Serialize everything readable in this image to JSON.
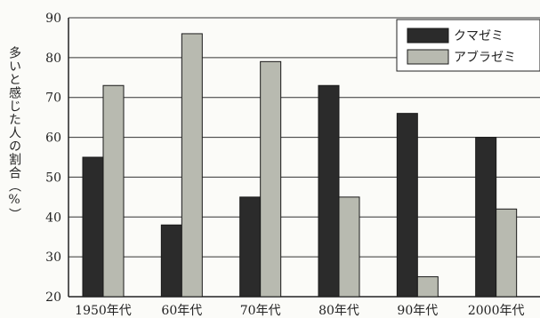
{
  "chart_data": {
    "type": "bar",
    "ylabel": "多いと感じた人の割合（%）",
    "xlabel": "",
    "categories": [
      "1950年代",
      "60年代",
      "70年代",
      "80年代",
      "90年代",
      "2000年代"
    ],
    "series": [
      {
        "name": "クマゼミ",
        "values": [
          55,
          38,
          45,
          73,
          66,
          60
        ]
      },
      {
        "name": "アブラゼミ",
        "values": [
          73,
          86,
          79,
          45,
          25,
          42
        ]
      }
    ],
    "ylim": [
      20,
      90
    ],
    "yticks": [
      20,
      30,
      40,
      50,
      60,
      70,
      80,
      90
    ],
    "grid": true,
    "legend_position": "top-right",
    "colors": {
      "クマゼミ": "#2b2b2b",
      "アブラゼミ": "#b8bab0",
      "axis": "#222222",
      "grid": "#333333"
    }
  }
}
